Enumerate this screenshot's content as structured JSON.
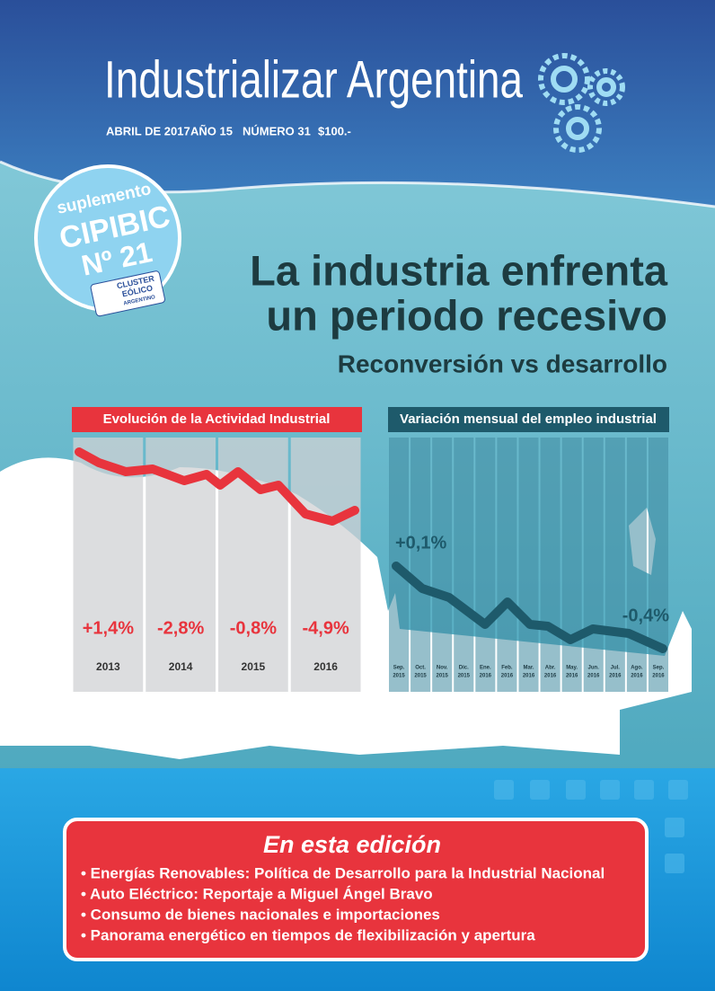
{
  "masthead": {
    "title": "Industrializar Argentina",
    "issue": [
      "ABRIL DE 2017",
      "AÑO 15",
      "NÚMERO 31",
      "$100.-"
    ]
  },
  "badge": {
    "kicker": "suplemento",
    "name": "CIPIBIC",
    "number": "Nº 21",
    "logo": [
      "CLUSTER",
      "EÓLICO",
      "ARGENTINO"
    ]
  },
  "headline": {
    "lines": [
      "La industria enfrenta",
      "un periodo recesivo"
    ],
    "subtitle": "Reconversión vs desarrollo"
  },
  "chart_left": {
    "title": "Evolución de la Actividad Industrial",
    "categories": [
      "2013",
      "2014",
      "2015",
      "2016"
    ],
    "labels": [
      "+1,4%",
      "-2,8%",
      "-0,8%",
      "-4,9%"
    ]
  },
  "chart_right": {
    "title": "Variación mensual del empleo industrial",
    "categories": [
      [
        "Sep.",
        "2015"
      ],
      [
        "Oct.",
        "2015"
      ],
      [
        "Nov.",
        "2015"
      ],
      [
        "Dic.",
        "2015"
      ],
      [
        "Ene.",
        "2016"
      ],
      [
        "Feb.",
        "2016"
      ],
      [
        "Mar.",
        "2016"
      ],
      [
        "Abr.",
        "2016"
      ],
      [
        "May.",
        "2016"
      ],
      [
        "Jun.",
        "2016"
      ],
      [
        "Jul.",
        "2016"
      ],
      [
        "Ago.",
        "2016"
      ],
      [
        "Sep.",
        "2016"
      ]
    ],
    "start_label": "+0,1%",
    "end_label": "-0,4%"
  },
  "edition": {
    "title": "En esta edición",
    "items": [
      "• Energías Renovables: Política de Desarrollo para la Industrial Nacional",
      "• Auto Eléctrico: Reportaje a Miguel Ángel Bravo",
      "• Consumo de bienes nacionales e importaciones",
      "• Panorama energético en tiempos de flexibilización y apertura"
    ]
  }
}
